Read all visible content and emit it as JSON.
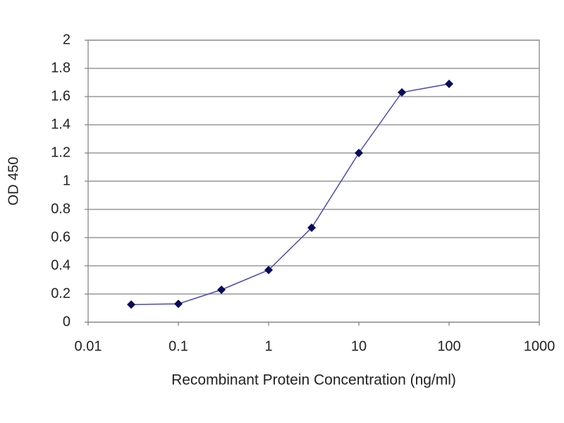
{
  "chart_data": {
    "type": "line",
    "x_label": "Recombinant Protein Concentration (ng/ml)",
    "y_label": "OD 450",
    "x": [
      0.03,
      0.1,
      0.3,
      1,
      3,
      10,
      30,
      100
    ],
    "series": [
      {
        "name": "OD 450",
        "color": "#4a4ab8",
        "marker_color": "#0a0a5a",
        "values": [
          0.125,
          0.13,
          0.23,
          0.37,
          0.67,
          1.2,
          1.63,
          1.69
        ]
      }
    ],
    "xscale": "log",
    "xlim": [
      0.01,
      1000
    ],
    "xticks": [
      0.01,
      0.1,
      1,
      10,
      100,
      1000
    ],
    "ylim": [
      0,
      2
    ],
    "yticks": [
      0,
      0.2,
      0.4,
      0.6,
      0.8,
      1,
      1.2,
      1.4,
      1.6,
      1.8,
      2
    ],
    "grid": true
  }
}
